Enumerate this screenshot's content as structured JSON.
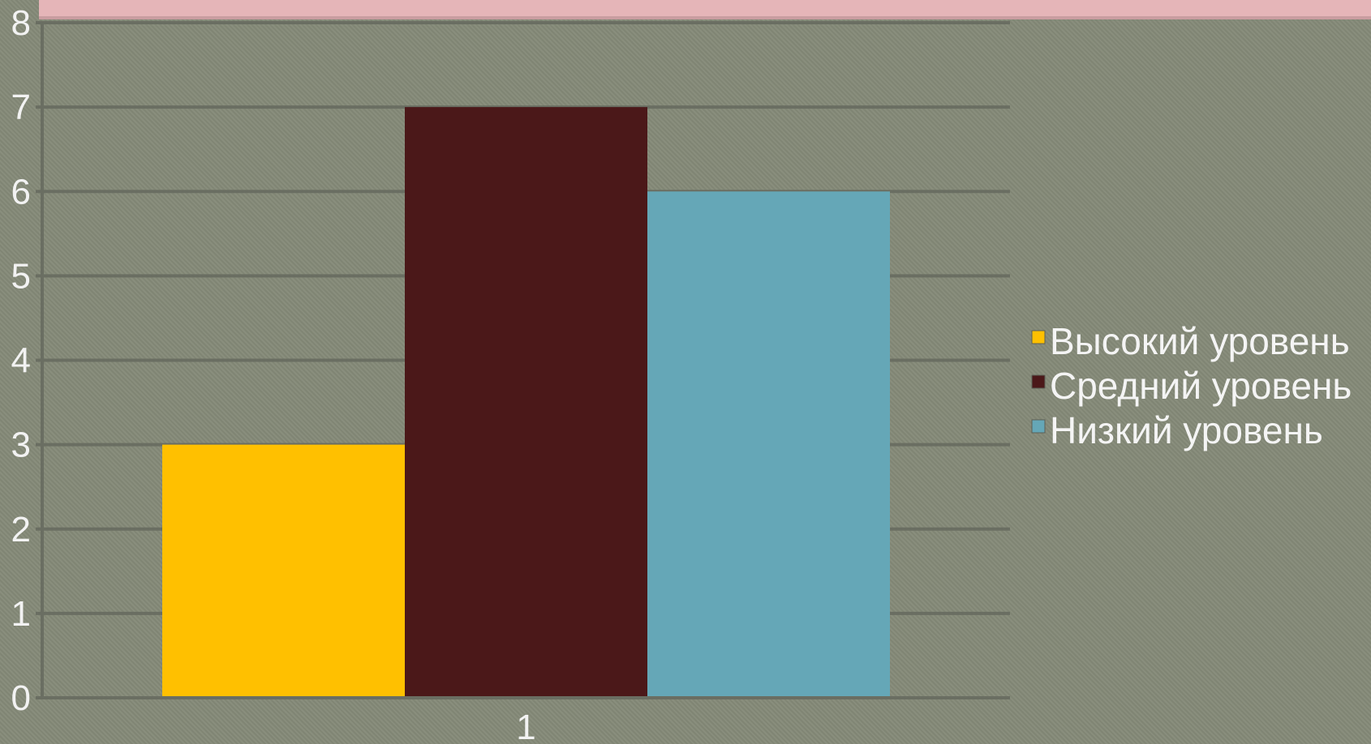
{
  "chart_data": {
    "type": "bar",
    "categories": [
      "1"
    ],
    "series": [
      {
        "name": "Высокий уровень",
        "values": [
          3
        ],
        "color": "#ffc000"
      },
      {
        "name": "Средний уровень",
        "values": [
          7
        ],
        "color": "#4b1819"
      },
      {
        "name": "Низкий уровень",
        "values": [
          6
        ],
        "color": "#65a7b7"
      }
    ],
    "ylim": [
      0,
      8
    ],
    "yticks": [
      "0",
      "1",
      "2",
      "3",
      "4",
      "5",
      "6",
      "7",
      "8"
    ],
    "grid": true,
    "legend": "right",
    "title": "",
    "xlabel": "",
    "ylabel": ""
  }
}
